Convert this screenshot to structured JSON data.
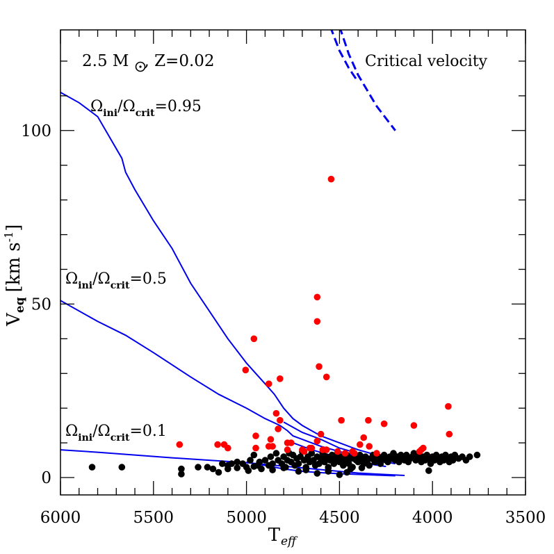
{
  "chart_data": {
    "type": "scatter",
    "xlabel": "T",
    "xlabel_sub": "eff",
    "ylabel_main": "V",
    "ylabel_sub": "eq",
    "ylabel_units_a": "[km s",
    "ylabel_units_sup": "-1",
    "ylabel_units_b": "]",
    "xlim": [
      6000,
      3500
    ],
    "ylim": [
      -5,
      129
    ],
    "x_ticks_major": [
      6000,
      5500,
      5000,
      4500,
      4000,
      3500
    ],
    "y_ticks_major": [
      0,
      50,
      100
    ],
    "x_tick_labels": [
      "6000",
      "5500",
      "5000",
      "4500",
      "4000",
      "3500"
    ],
    "y_tick_labels": [
      "0",
      "50",
      "100"
    ],
    "grid": false,
    "annotations": {
      "model": {
        "prefix": "2.5 M",
        "suffix": ", Z=0.02"
      },
      "critical_label": "Critical velocity",
      "track_labels": [
        {
          "id": "w095",
          "omega": "Ω",
          "sub1": "ini",
          "sub2": "crit",
          "value": "=0.95"
        },
        {
          "id": "w05",
          "omega": "Ω",
          "sub1": "ini",
          "sub2": "crit",
          "value": "=0.5"
        },
        {
          "id": "w01",
          "omega": "Ω",
          "sub1": "ini",
          "sub2": "crit",
          "value": "=0.1"
        }
      ]
    },
    "colors": {
      "track": "#0000ee",
      "red_stars": "#ff0000",
      "black_stars": "#000000"
    },
    "critical_curves": [
      {
        "name": "",
        "style": "dashed",
        "points": [
          [
            4550,
            130
          ],
          [
            4500,
            123
          ],
          [
            4450,
            118
          ],
          [
            4400,
            114
          ]
        ]
      },
      {
        "name": "",
        "style": "dashed",
        "points": [
          [
            4500,
            130
          ],
          [
            4450,
            122
          ],
          [
            4400,
            116
          ],
          [
            4300,
            107
          ],
          [
            4200,
            100
          ]
        ]
      }
    ],
    "tracks": [
      {
        "name": "",
        "points": [
          [
            6000,
            111
          ],
          [
            5900,
            108
          ],
          [
            5800,
            104
          ],
          [
            5670,
            92
          ],
          [
            5650,
            88
          ],
          [
            5600,
            83
          ],
          [
            5500,
            74
          ],
          [
            5400,
            66
          ],
          [
            5300,
            56
          ],
          [
            5200,
            48
          ],
          [
            5100,
            40
          ],
          [
            5000,
            33
          ],
          [
            4900,
            27
          ],
          [
            4850,
            24
          ],
          [
            4800,
            20
          ],
          [
            4750,
            17
          ],
          [
            4700,
            15
          ],
          [
            4600,
            12
          ],
          [
            4500,
            10
          ],
          [
            4400,
            8
          ],
          [
            4300,
            6.5
          ],
          [
            4200,
            5.5
          ]
        ]
      },
      {
        "name": "",
        "points": [
          [
            6000,
            51
          ],
          [
            5800,
            45
          ],
          [
            5650,
            41
          ],
          [
            5500,
            36
          ],
          [
            5300,
            29
          ],
          [
            5150,
            24
          ],
          [
            5000,
            20
          ],
          [
            4900,
            17
          ],
          [
            4820,
            15
          ],
          [
            4780,
            13.5
          ],
          [
            4750,
            12
          ],
          [
            4700,
            11
          ],
          [
            4600,
            9
          ],
          [
            4500,
            7.5
          ],
          [
            4400,
            6
          ],
          [
            4300,
            5
          ],
          [
            4200,
            4
          ]
        ]
      },
      {
        "name": "",
        "points": [
          [
            6000,
            8
          ],
          [
            5800,
            7.3
          ],
          [
            5600,
            6.5
          ],
          [
            5400,
            5.7
          ],
          [
            5200,
            5
          ],
          [
            5000,
            4.3
          ],
          [
            4900,
            3.8
          ],
          [
            4800,
            3.3
          ],
          [
            4700,
            2.8
          ],
          [
            4600,
            2.3
          ],
          [
            4500,
            1.8
          ],
          [
            4400,
            1.3
          ],
          [
            4300,
            1
          ],
          [
            4150,
            0.6
          ]
        ]
      },
      {
        "name": "",
        "points": [
          [
            4800,
            16
          ],
          [
            4700,
            13
          ],
          [
            4600,
            11
          ],
          [
            4500,
            8.5
          ],
          [
            4400,
            7
          ],
          [
            4300,
            5.5
          ],
          [
            4200,
            4.5
          ]
        ]
      },
      {
        "name": "",
        "points": [
          [
            4750,
            10
          ],
          [
            4650,
            8
          ],
          [
            4550,
            6.5
          ],
          [
            4450,
            5
          ],
          [
            4350,
            4
          ],
          [
            4250,
            3.2
          ]
        ]
      },
      {
        "name": "",
        "points": [
          [
            5000,
            4.5
          ],
          [
            4900,
            3.5
          ],
          [
            4800,
            2.5
          ],
          [
            4700,
            1.8
          ],
          [
            4600,
            1.4
          ],
          [
            4500,
            1.1
          ],
          [
            4400,
            0.9
          ],
          [
            4300,
            0.7
          ],
          [
            4200,
            0.5
          ]
        ]
      }
    ],
    "red_points": [
      [
        4545,
        86
      ],
      [
        4620,
        52
      ],
      [
        4620,
        45
      ],
      [
        4960,
        40
      ],
      [
        5005,
        31
      ],
      [
        4610,
        32
      ],
      [
        4570,
        29
      ],
      [
        4880,
        27
      ],
      [
        4820,
        28.5
      ],
      [
        3915,
        20.5
      ],
      [
        4840,
        18.5
      ],
      [
        4820,
        16.5
      ],
      [
        4490,
        16.5
      ],
      [
        4345,
        16.5
      ],
      [
        4260,
        15.5
      ],
      [
        4100,
        15
      ],
      [
        4830,
        14
      ],
      [
        3910,
        12.5
      ],
      [
        4870,
        11
      ],
      [
        4950,
        12
      ],
      [
        4600,
        12.5
      ],
      [
        4370,
        11.5
      ],
      [
        4780,
        10
      ],
      [
        4760,
        10
      ],
      [
        4620,
        10.5
      ],
      [
        4390,
        9.5
      ],
      [
        4340,
        9
      ],
      [
        4860,
        9
      ],
      [
        4950,
        8.5
      ],
      [
        4700,
        8
      ],
      [
        4660,
        8.5
      ],
      [
        4650,
        8.5
      ],
      [
        4590,
        8
      ],
      [
        4060,
        8
      ],
      [
        4050,
        8.5
      ],
      [
        4070,
        7.5
      ],
      [
        5360,
        9.5
      ],
      [
        5155,
        9.5
      ],
      [
        5120,
        9.5
      ],
      [
        5100,
        8.5
      ],
      [
        4880,
        9
      ],
      [
        4690,
        7.5
      ],
      [
        4570,
        8
      ],
      [
        4510,
        7.5
      ],
      [
        4470,
        7
      ],
      [
        4430,
        7.5
      ],
      [
        4420,
        7
      ],
      [
        4300,
        7
      ],
      [
        4780,
        8
      ]
    ],
    "black_points": [
      [
        5830,
        3
      ],
      [
        5670,
        3
      ],
      [
        5350,
        2.5
      ],
      [
        5350,
        1
      ],
      [
        5260,
        3
      ],
      [
        5210,
        3
      ],
      [
        5180,
        2.5
      ],
      [
        5150,
        1.5
      ],
      [
        5130,
        4
      ],
      [
        5100,
        3.5
      ],
      [
        5080,
        4
      ],
      [
        5050,
        4.5
      ],
      [
        5020,
        4
      ],
      [
        5000,
        3
      ],
      [
        4980,
        5
      ],
      [
        4960,
        6.5
      ],
      [
        4940,
        3.5
      ],
      [
        4930,
        4.5
      ],
      [
        4900,
        5
      ],
      [
        4880,
        3.5
      ],
      [
        4870,
        6
      ],
      [
        4860,
        4
      ],
      [
        4840,
        7
      ],
      [
        4830,
        5
      ],
      [
        4810,
        4
      ],
      [
        4800,
        6
      ],
      [
        4790,
        3
      ],
      [
        4780,
        5
      ],
      [
        4770,
        7
      ],
      [
        4760,
        4.5
      ],
      [
        4750,
        6.5
      ],
      [
        4740,
        3.5
      ],
      [
        4730,
        5.5
      ],
      [
        4720,
        4
      ],
      [
        4710,
        6
      ],
      [
        4700,
        7.5
      ],
      [
        4690,
        5
      ],
      [
        4680,
        3
      ],
      [
        4670,
        6
      ],
      [
        4660,
        4.5
      ],
      [
        4650,
        7
      ],
      [
        4640,
        5
      ],
      [
        4630,
        3.5
      ],
      [
        4620,
        6
      ],
      [
        4610,
        4
      ],
      [
        4600,
        5.5
      ],
      [
        4590,
        7
      ],
      [
        4580,
        4.5
      ],
      [
        4570,
        6
      ],
      [
        4560,
        3
      ],
      [
        4550,
        5
      ],
      [
        4540,
        6.5
      ],
      [
        4530,
        4
      ],
      [
        4520,
        5.5
      ],
      [
        4510,
        7
      ],
      [
        4500,
        4.5
      ],
      [
        4490,
        6
      ],
      [
        4480,
        3.5
      ],
      [
        4470,
        5
      ],
      [
        4460,
        6.5
      ],
      [
        4450,
        4
      ],
      [
        4440,
        5.5
      ],
      [
        4430,
        3
      ],
      [
        4420,
        6
      ],
      [
        4410,
        5
      ],
      [
        4400,
        4.5
      ],
      [
        4390,
        6.5
      ],
      [
        4380,
        5.5
      ],
      [
        4370,
        4
      ],
      [
        4360,
        6
      ],
      [
        4350,
        5
      ],
      [
        4340,
        3.5
      ],
      [
        4330,
        5.5
      ],
      [
        4320,
        6.5
      ],
      [
        4310,
        4.5
      ],
      [
        4300,
        5
      ],
      [
        4290,
        6
      ],
      [
        4280,
        4
      ],
      [
        4270,
        5.5
      ],
      [
        4260,
        6.5
      ],
      [
        4250,
        5
      ],
      [
        4240,
        4.5
      ],
      [
        4230,
        6
      ],
      [
        4220,
        5.5
      ],
      [
        4210,
        7
      ],
      [
        4200,
        5
      ],
      [
        4190,
        6
      ],
      [
        4180,
        4.5
      ],
      [
        4170,
        6.5
      ],
      [
        4160,
        5.5
      ],
      [
        4150,
        5
      ],
      [
        4140,
        6.5
      ],
      [
        4130,
        4.5
      ],
      [
        4120,
        5.5
      ],
      [
        4110,
        6
      ],
      [
        4100,
        7
      ],
      [
        4090,
        5
      ],
      [
        4080,
        6.5
      ],
      [
        4070,
        5.5
      ],
      [
        4060,
        4.5
      ],
      [
        4050,
        6
      ],
      [
        4040,
        5
      ],
      [
        4030,
        6.5
      ],
      [
        4020,
        5.5
      ],
      [
        4010,
        4
      ],
      [
        4000,
        6
      ],
      [
        3990,
        5
      ],
      [
        3980,
        6.5
      ],
      [
        3970,
        5.5
      ],
      [
        3960,
        4.5
      ],
      [
        3950,
        6
      ],
      [
        3940,
        5
      ],
      [
        3930,
        6.5
      ],
      [
        3920,
        5.5
      ],
      [
        3910,
        4.5
      ],
      [
        3900,
        6
      ],
      [
        3890,
        5
      ],
      [
        3880,
        6.5
      ],
      [
        3860,
        5.5
      ],
      [
        3840,
        6
      ],
      [
        3820,
        5
      ],
      [
        3800,
        6
      ],
      [
        3760,
        6.5
      ],
      [
        4020,
        2
      ],
      [
        4620,
        1.2
      ],
      [
        4500,
        0.8
      ],
      [
        4720,
        1.8
      ],
      [
        4860,
        2.2
      ],
      [
        4920,
        2.5
      ],
      [
        4990,
        2
      ],
      [
        5100,
        2.5
      ],
      [
        5050,
        2.8
      ],
      [
        4960,
        3.2
      ],
      [
        4800,
        2.8
      ],
      [
        4680,
        2.2
      ],
      [
        4560,
        2.8
      ],
      [
        4440,
        2.5
      ],
      [
        4380,
        2.8
      ],
      [
        4560,
        1.8
      ],
      [
        4460,
        1.5
      ]
    ]
  }
}
